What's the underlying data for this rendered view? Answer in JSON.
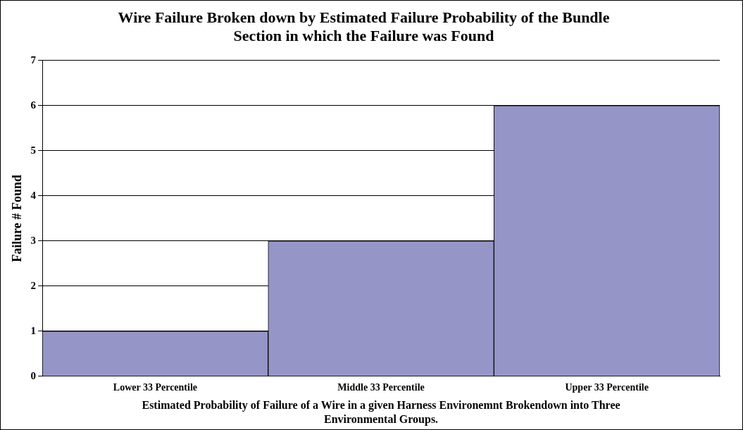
{
  "chart_data": {
    "type": "bar",
    "title": "Wire Failure Broken down by Estimated Failure Probability of the Bundle Section in which the Failure was Found",
    "xlabel": "Estimated Probability of Failure of a Wire in a given Harness Environemnt Brokendown into Three Environmental Groups.",
    "ylabel": "Failure # Found",
    "categories": [
      "Lower 33 Percentile",
      "Middle 33 Percentile",
      "Upper 33 Percentile"
    ],
    "values": [
      1,
      3,
      6
    ],
    "color": "#9595c8",
    "ylim": [
      0,
      7
    ],
    "yticks": [
      0,
      1,
      2,
      3,
      4,
      5,
      6,
      7
    ],
    "grid": "y"
  }
}
